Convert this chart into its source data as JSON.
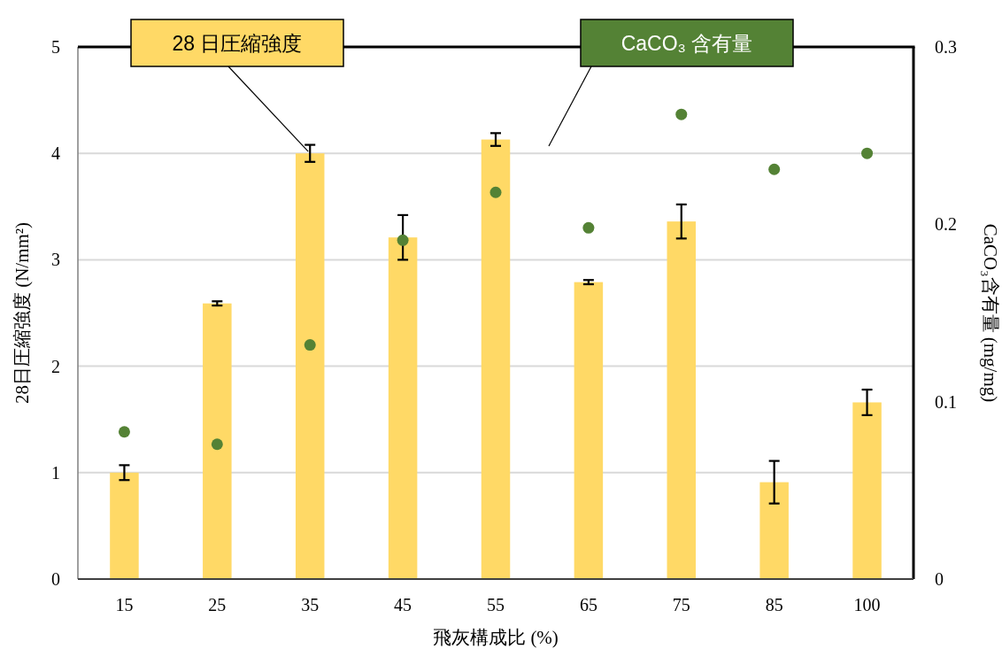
{
  "chart_data": {
    "type": "bar",
    "xlabel": "飛灰構成比 (%)",
    "ylabel": "28日圧縮強度 (N/mm²)",
    "y2label": "CaCO₃含有量 (mg/mg)",
    "categories": [
      "15",
      "25",
      "35",
      "45",
      "55",
      "65",
      "75",
      "85",
      "100"
    ],
    "series": [
      {
        "name": "28 日圧縮強度",
        "color": "#ffd966",
        "values": [
          1.0,
          2.59,
          4.0,
          3.21,
          4.13,
          2.79,
          3.36,
          0.91,
          1.66
        ],
        "errors": [
          0.07,
          0.02,
          0.08,
          0.21,
          0.06,
          0.02,
          0.16,
          0.2,
          0.12
        ]
      },
      {
        "name": "CaCO₃ 含有量",
        "type": "scatter",
        "axis": "y2",
        "marker": "circle",
        "color": "#548235",
        "values": [
          0.083,
          0.076,
          0.132,
          0.191,
          0.218,
          0.198,
          0.262,
          0.231,
          0.24
        ]
      }
    ],
    "ylim": [
      0,
      5
    ],
    "yticks": [
      0,
      1,
      2,
      3,
      4,
      5
    ],
    "y2lim": [
      0,
      0.3
    ],
    "y2ticks": [
      0,
      0.1,
      0.2,
      0.3
    ],
    "grid": "y"
  }
}
